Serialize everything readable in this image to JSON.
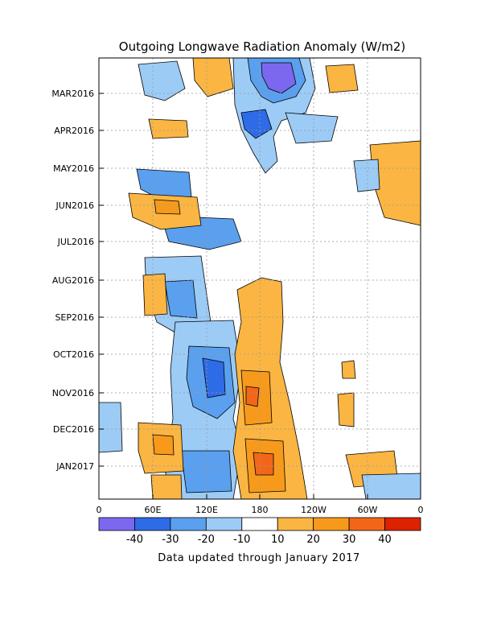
{
  "chart_data": {
    "type": "heatmap",
    "title": "Outgoing Longwave Radiation Anomaly (W/m2)",
    "footnote": "Data updated through January 2017",
    "x_axis": {
      "ticks": [
        "0",
        "60E",
        "120E",
        "180",
        "120W",
        "60W",
        "0"
      ],
      "range_deg_east": [
        0,
        360
      ]
    },
    "y_axis": {
      "ticks": [
        "MAR2016",
        "APR2016",
        "MAY2016",
        "JUN2016",
        "JUL2016",
        "AUG2016",
        "SEP2016",
        "OCT2016",
        "NOV2016",
        "DEC2016",
        "JAN2017"
      ],
      "direction": "time increases downward"
    },
    "colorbar": {
      "tick_labels": [
        "-40",
        "-30",
        "-20",
        "-10",
        "10",
        "20",
        "30",
        "40"
      ],
      "levels": [
        -50,
        -40,
        -30,
        -20,
        -10,
        10,
        20,
        30,
        40,
        50
      ],
      "colors": [
        "#7b68ee",
        "#2e6be6",
        "#5aa0ee",
        "#9ccbf6",
        "#ffffff",
        "#fbb542",
        "#f79a1c",
        "#f3661a",
        "#dd2200"
      ]
    },
    "regions": [
      {
        "id": "dateline-pos-band",
        "level": "10 to 20",
        "lon_range": [
          165,
          215
        ],
        "time_range": [
          "AUG2016",
          "FEB2017"
        ]
      },
      {
        "id": "dateline-pos-core-nov",
        "level": "20 to 30",
        "lon_range": [
          170,
          185
        ],
        "time_range": [
          "OCT2016",
          "DEC2016"
        ]
      },
      {
        "id": "dateline-pos-core-jan",
        "level": "30 to 40",
        "lon_range": [
          180,
          192
        ],
        "time_range": [
          "DEC2016",
          "FEB2017"
        ]
      },
      {
        "id": "maritime-neg-band",
        "level": "-10 to -30",
        "lon_range": [
          90,
          165
        ],
        "time_range": [
          "JUL2016",
          "FEB2017"
        ]
      },
      {
        "id": "spring-neg-dateline",
        "level": "-30 to -50",
        "lon_range": [
          180,
          210
        ],
        "time_range": [
          "FEB2016",
          "APR2016"
        ]
      },
      {
        "id": "indian-ocean-neg",
        "level": "-10 to -20",
        "lon_range": [
          45,
          120
        ],
        "time_range": [
          "MAY2016",
          "SEP2016"
        ]
      },
      {
        "id": "indian-ocean-pos-jun",
        "level": "20 to 30",
        "lon_range": [
          40,
          70
        ],
        "time_range": [
          "MAY2016",
          "JUN2016"
        ]
      },
      {
        "id": "indian-ocean-pos-dec",
        "level": "10 to 30",
        "lon_range": [
          45,
          85
        ],
        "time_range": [
          "NOV2016",
          "FEB2017"
        ]
      },
      {
        "id": "east-pacific-pos",
        "level": "10 to 20",
        "lon_range": [
          280,
          300
        ],
        "time_range": [
          "FEB2016",
          "JUN2016"
        ]
      }
    ]
  }
}
